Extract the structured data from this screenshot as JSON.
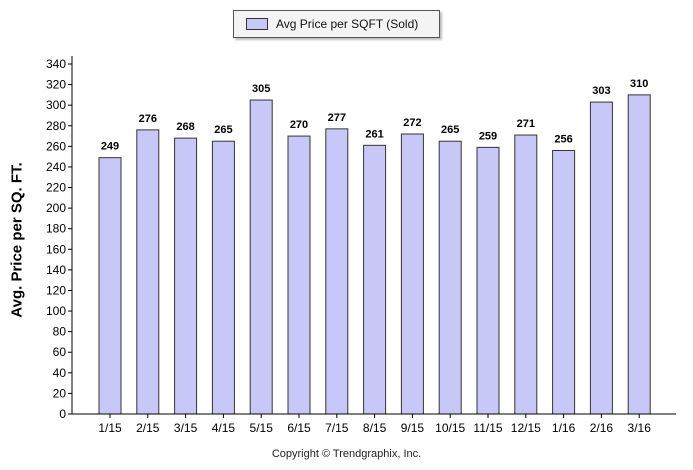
{
  "chart_data": {
    "type": "bar",
    "categories": [
      "1/15",
      "2/15",
      "3/15",
      "4/15",
      "5/15",
      "6/15",
      "7/15",
      "8/15",
      "9/15",
      "10/15",
      "11/15",
      "12/15",
      "1/16",
      "2/16",
      "3/16"
    ],
    "series": [
      {
        "name": "Avg Price per SQFT (Sold)",
        "values": [
          249,
          276,
          268,
          265,
          305,
          270,
          277,
          261,
          272,
          265,
          259,
          271,
          256,
          303,
          310
        ]
      }
    ],
    "ylabel": "Avg. Price per SQ. FT.",
    "ylim": [
      0,
      340
    ],
    "yticks": [
      0,
      20,
      40,
      60,
      80,
      100,
      120,
      140,
      160,
      180,
      200,
      220,
      240,
      260,
      280,
      300,
      320,
      340
    ],
    "legend": "top-center",
    "grid": false,
    "bar_color": "#c8c8f8",
    "bar_edge_color": "#333333",
    "footer": "Copyright © Trendgraphix, Inc."
  }
}
